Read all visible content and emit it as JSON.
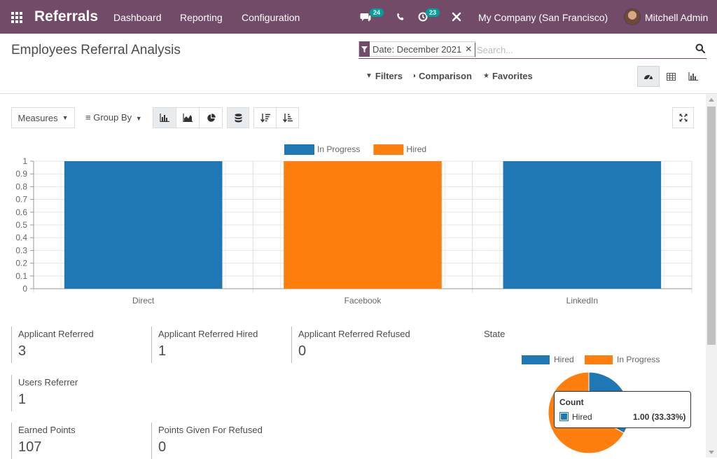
{
  "app": {
    "name": "Referrals",
    "menus": [
      "Dashboard",
      "Reporting",
      "Configuration"
    ],
    "messages_count": "24",
    "activities_count": "23",
    "company": "My Company (San Francisco)",
    "user": "Mitchell Admin",
    "brand_color": "#714b67",
    "badge_color": "#00a09d"
  },
  "page": {
    "title": "Employees Referral Analysis"
  },
  "search": {
    "facet_label": "Date: December 2021",
    "placeholder": "Search..."
  },
  "control_panel": {
    "filters_label": "Filters",
    "comparison_label": "Comparison",
    "favorites_label": "Favorites",
    "views": [
      "dashboard",
      "pivot",
      "graph"
    ],
    "active_view": "dashboard"
  },
  "toolbar": {
    "measures_label": "Measures",
    "groupby_label": "Group By",
    "chart_modes": [
      "bar",
      "line",
      "pie"
    ],
    "active_chart_mode": "bar"
  },
  "chart_data": [
    {
      "type": "bar",
      "categories": [
        "Direct",
        "Facebook",
        "LinkedIn"
      ],
      "series": [
        {
          "name": "In Progress",
          "color": "#1f77b4",
          "values": [
            1,
            0,
            1
          ]
        },
        {
          "name": "Hired",
          "color": "#ff7f0e",
          "values": [
            0,
            1,
            0
          ]
        }
      ],
      "yticks": [
        "0",
        "0.1",
        "0.2",
        "0.3",
        "0.4",
        "0.5",
        "0.6",
        "0.7",
        "0.8",
        "0.9",
        "1"
      ],
      "ylim": [
        0,
        1
      ],
      "grid": true,
      "legend": "top-center"
    },
    {
      "type": "pie",
      "title": "State",
      "series": [
        {
          "name": "Hired",
          "color": "#1f77b4",
          "value": 1
        },
        {
          "name": "In Progress",
          "color": "#ff7f0e",
          "value": 2
        }
      ],
      "legend": "top",
      "tooltip": {
        "title": "Count",
        "series": "Hired",
        "value": "1.00 (33.33%)"
      }
    }
  ],
  "stats": [
    {
      "label": "Applicant Referred",
      "value": "3"
    },
    {
      "label": "Applicant Referred Hired",
      "value": "1"
    },
    {
      "label": "Applicant Referred Refused",
      "value": "0"
    },
    {
      "label": "Users Referrer",
      "value": "1"
    },
    {
      "label": "Earned Points",
      "value": "107"
    },
    {
      "label": "Points Given For Refused",
      "value": "0"
    }
  ]
}
